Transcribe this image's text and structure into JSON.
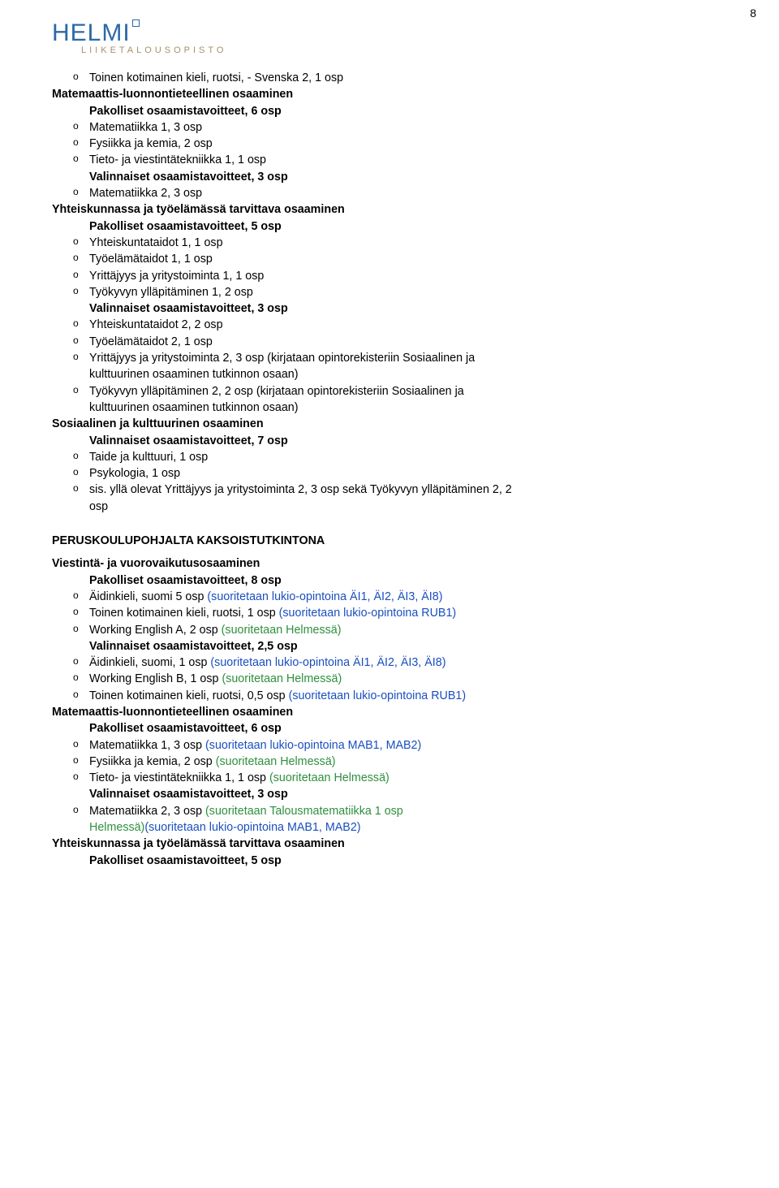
{
  "pageNumber": "8",
  "logo": {
    "brand": "HELMI",
    "subline": "LIIKETALOUSOPISTO"
  },
  "colors": {
    "green": "#2f8f3f",
    "blue": "#1a4fbf",
    "logoBlue": "#2b6aa6",
    "logoGold": "#a68f6a"
  },
  "block1": {
    "l0": "Toinen kotimainen kieli, ruotsi, - Svenska 2, 1 osp",
    "h1": "Matemaattis-luonnontieteellinen osaaminen",
    "h2": "Pakolliset osaamistavoitteet, 6 osp",
    "l1": "Matematiikka 1, 3 osp",
    "l2": "Fysiikka ja kemia, 2 osp",
    "l3": "Tieto- ja viestintätekniikka 1, 1 osp",
    "h3": "Valinnaiset osaamistavoitteet, 3 osp",
    "l4": "Matematiikka 2, 3 osp",
    "h4": "Yhteiskunnassa ja työelämässä tarvittava osaaminen",
    "h5": "Pakolliset osaamistavoitteet, 5 osp",
    "l5": "Yhteiskuntataidot 1, 1 osp",
    "l6": "Työelämätaidot 1, 1 osp",
    "l7": "Yrittäjyys ja yritystoiminta 1, 1 osp",
    "l8": "Työkyvyn ylläpitäminen 1, 2 osp",
    "h6": "Valinnaiset osaamistavoitteet, 3 osp",
    "l9": "Yhteiskuntataidot 2, 2 osp",
    "l10": "Työelämätaidot 2, 1 osp",
    "l11": "Yrittäjyys ja yritystoiminta 2, 3 osp (kirjataan opintorekisteriin Sosiaalinen ja kulttuurinen osaaminen tutkinnon osaan)",
    "l11a": "Yrittäjyys ja yritystoiminta 2, 3 osp (kirjataan opintorekisteriin Sosiaalinen ja",
    "l11b": "kulttuurinen osaaminen tutkinnon osaan)",
    "l12a": "Työkyvyn ylläpitäminen 2, 2 osp (kirjataan opintorekisteriin Sosiaalinen ja",
    "l12b": "kulttuurinen osaaminen tutkinnon osaan)",
    "h7": "Sosiaalinen ja kulttuurinen osaaminen",
    "h8": "Valinnaiset osaamistavoitteet, 7 osp",
    "l13": "Taide ja kulttuuri, 1 osp",
    "l14": "Psykologia, 1 osp",
    "l15a": "sis. yllä olevat Yrittäjyys ja yritystoiminta 2, 3 osp sekä Työkyvyn ylläpitäminen 2, 2",
    "l15b": "osp"
  },
  "section2": {
    "title": "PERUSKOULUPOHJALTA KAKSOISTUTKINTONA"
  },
  "block2": {
    "h1": "Viestintä- ja vuorovaikutusosaaminen",
    "h2": "Pakolliset osaamistavoitteet, 8 osp",
    "l1a": "Äidinkieli, suomi 5 osp ",
    "l1b": "(suoritetaan lukio-opintoina ÄI1, ÄI2, ÄI3, ÄI8)",
    "l2a": "Toinen kotimainen kieli, ruotsi, 1 osp ",
    "l2b": "(suoritetaan lukio-opintoina RUB1)",
    "l3a": "Working English A, 2 osp ",
    "l3b": "(suoritetaan Helmessä)",
    "h3": "Valinnaiset osaamistavoitteet, 2,5 osp",
    "l4a": "Äidinkieli, suomi, 1 osp ",
    "l4b": "(suoritetaan lukio-opintoina ÄI1, ÄI2, ÄI3, ÄI8)",
    "l5a": "Working English B, 1 osp ",
    "l5b": "(suoritetaan Helmessä)",
    "l6a": "Toinen kotimainen kieli, ruotsi, 0,5 osp ",
    "l6b": "(suoritetaan lukio-opintoina RUB1)",
    "h4": "Matemaattis-luonnontieteellinen osaaminen",
    "h5": "Pakolliset osaamistavoitteet, 6 osp",
    "l7a": "Matematiikka 1, 3 osp ",
    "l7b": "(suoritetaan lukio-opintoina MAB1, MAB2)",
    "l8a": "Fysiikka ja kemia, 2 osp ",
    "l8b": "(suoritetaan Helmessä)",
    "l9a": "Tieto- ja viestintätekniikka 1, 1 osp ",
    "l9b": "(suoritetaan Helmessä)",
    "h6": "Valinnaiset osaamistavoitteet, 3 osp",
    "l10a": "Matematiikka 2, 3 osp ",
    "l10b": "(suoritetaan Talousmatematiikka 1 osp",
    "l10c": "Helmessä)",
    "l10d": "(suoritetaan lukio-opintoina MAB1, MAB2)",
    "h7": "Yhteiskunnassa ja työelämässä tarvittava osaaminen",
    "h8": "Pakolliset osaamistavoitteet, 5 osp"
  }
}
